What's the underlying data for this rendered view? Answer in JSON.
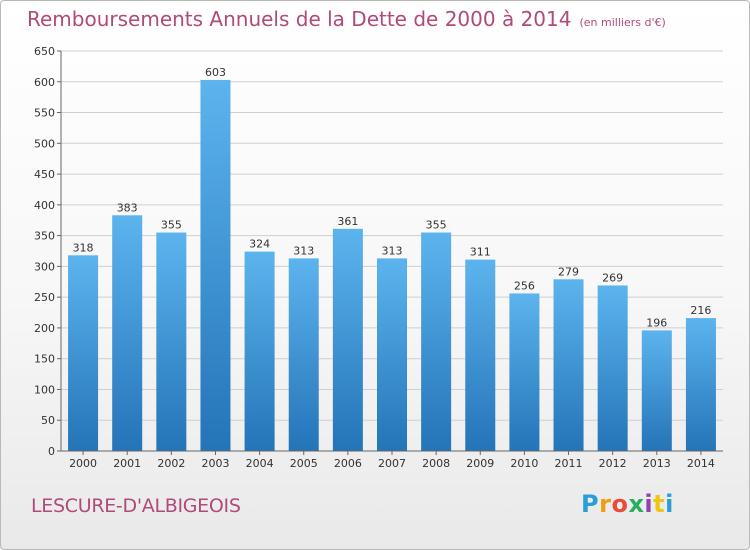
{
  "header": {
    "title": "Remboursements Annuels de la Dette de 2000 à 2014",
    "unit_note": "(en milliers d'€)"
  },
  "footer": {
    "commune": "LESCURE-D'ALBIGEOIS",
    "brand": "Proxiti"
  },
  "colors": {
    "bar_top": "#5cb4ee",
    "bar_bottom": "#2474b8",
    "title": "#b04a7a",
    "grid": "#cfcfcf"
  },
  "chart_data": {
    "type": "bar",
    "title": "Remboursements Annuels de la Dette de 2000 à 2014",
    "xlabel": "",
    "ylabel": "",
    "categories": [
      "2000",
      "2001",
      "2002",
      "2003",
      "2004",
      "2005",
      "2006",
      "2007",
      "2008",
      "2009",
      "2010",
      "2011",
      "2012",
      "2013",
      "2014"
    ],
    "values": [
      318,
      383,
      355,
      603,
      324,
      313,
      361,
      313,
      355,
      311,
      256,
      279,
      269,
      196,
      216
    ],
    "ylim": [
      0,
      650
    ],
    "yticks": [
      0,
      50,
      100,
      150,
      200,
      250,
      300,
      350,
      400,
      450,
      500,
      550,
      600,
      650
    ],
    "grid": true,
    "legend": "none"
  }
}
